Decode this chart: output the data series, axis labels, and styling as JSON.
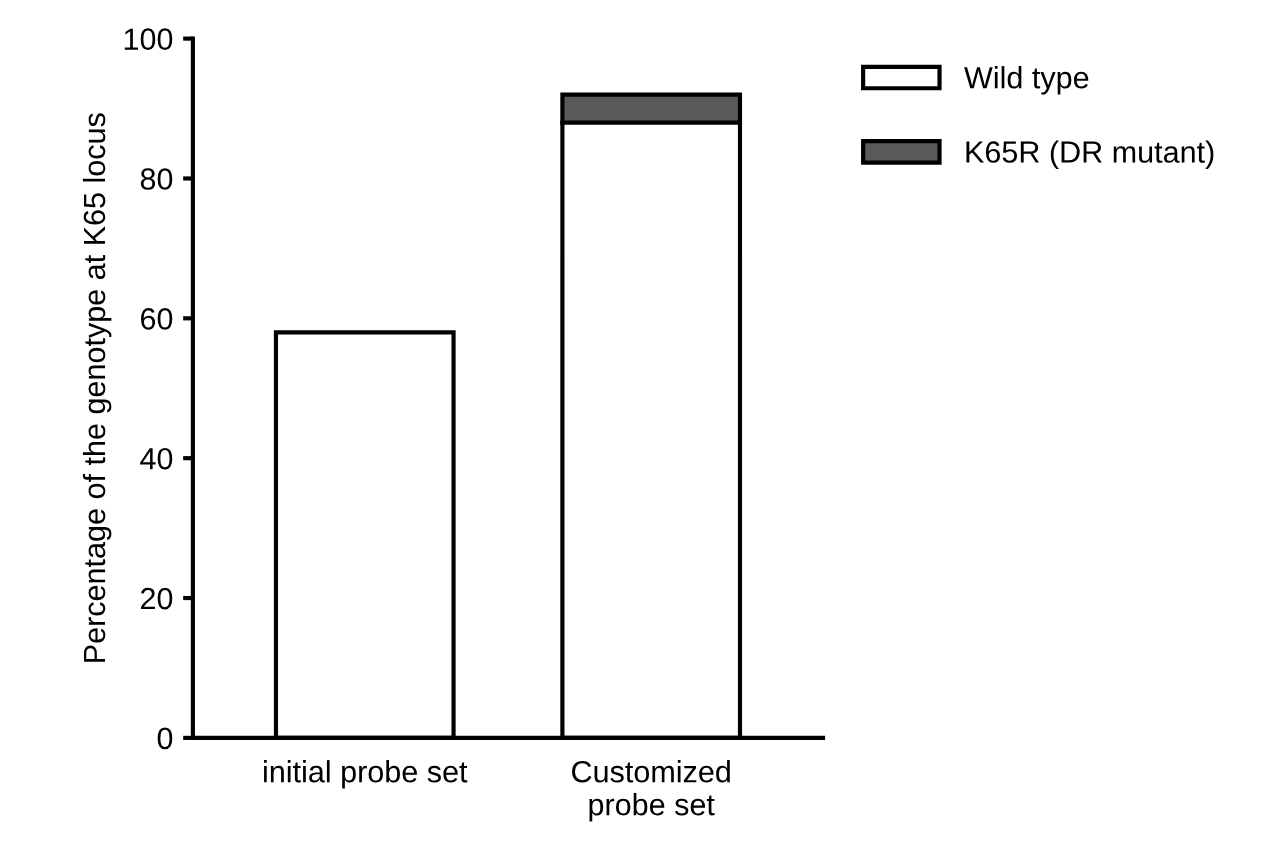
{
  "chart_data": {
    "type": "bar",
    "stacked": true,
    "ylabel": "Percentage of the genotype at K65 locus",
    "categories": [
      "initial probe set",
      "Customized\nprobe set"
    ],
    "series": [
      {
        "name": "Wild type",
        "color": "#ffffff",
        "values": [
          58,
          88
        ]
      },
      {
        "name": "K65R (DR mutant)",
        "color": "#595959",
        "values": [
          null,
          4
        ]
      }
    ],
    "ylim": [
      0,
      100
    ],
    "yticks": [
      0,
      20,
      40,
      60,
      80,
      100
    ],
    "grid": false,
    "legend": "top right"
  }
}
